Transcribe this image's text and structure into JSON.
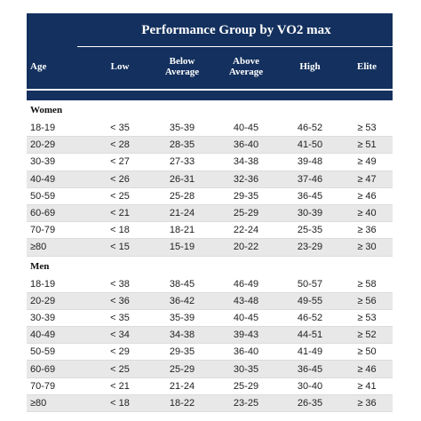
{
  "table": {
    "group_title": "Performance Group by VO2 max",
    "age_header": "Age",
    "columns": [
      "Low",
      "Below\nAverage",
      "Above\nAverage",
      "High",
      "Elite"
    ],
    "sections": [
      {
        "label": "Women",
        "rows": [
          [
            "18-19",
            "< 35",
            "35-39",
            "40-45",
            "46-52",
            "≥ 53"
          ],
          [
            "20-29",
            "< 28",
            "28-35",
            "36-40",
            "41-50",
            "≥ 51"
          ],
          [
            "30-39",
            "< 27",
            "27-33",
            "34-38",
            "39-48",
            "≥ 49"
          ],
          [
            "40-49",
            "< 26",
            "26-31",
            "32-36",
            "37-46",
            "≥ 47"
          ],
          [
            "50-59",
            "< 25",
            "25-28",
            "29-35",
            "36-45",
            "≥ 46"
          ],
          [
            "60-69",
            "< 21",
            "21-24",
            "25-29",
            "30-39",
            "≥ 40"
          ],
          [
            "70-79",
            "< 18",
            "18-21",
            "22-24",
            "25-35",
            "≥ 36"
          ],
          [
            "≥80",
            "< 15",
            "15-19",
            "20-22",
            "23-29",
            "≥ 30"
          ]
        ]
      },
      {
        "label": "Men",
        "rows": [
          [
            "18-19",
            "< 38",
            "38-45",
            "46-49",
            "50-57",
            "≥ 58"
          ],
          [
            "20-29",
            "< 36",
            "36-42",
            "43-48",
            "49-55",
            "≥ 56"
          ],
          [
            "30-39",
            "< 35",
            "35-39",
            "40-45",
            "46-52",
            "≥ 53"
          ],
          [
            "40-49",
            "< 34",
            "34-38",
            "39-43",
            "44-51",
            "≥ 52"
          ],
          [
            "50-59",
            "< 29",
            "29-35",
            "36-40",
            "41-49",
            "≥ 50"
          ],
          [
            "60-69",
            "< 25",
            "25-29",
            "30-35",
            "36-45",
            "≥ 46"
          ],
          [
            "70-79",
            "< 21",
            "21-24",
            "25-29",
            "30-40",
            "≥ 41"
          ],
          [
            "≥80",
            "< 18",
            "18-22",
            "23-25",
            "26-35",
            "≥ 36"
          ]
        ]
      }
    ]
  },
  "colors": {
    "header_bg": "#13305e",
    "shaded_row": "#e8e8e8"
  }
}
